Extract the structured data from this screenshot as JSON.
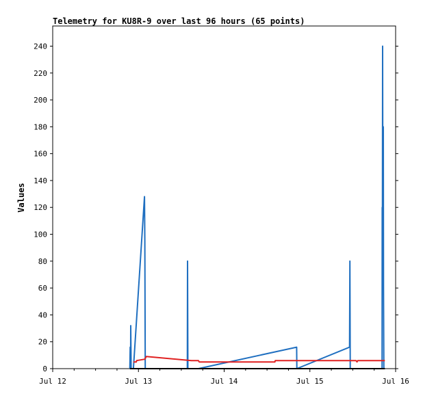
{
  "chart_data": {
    "type": "line",
    "title": "Telemetry for KU8R-9 over last 96 hours (65 points)",
    "xlabel": "",
    "ylabel": "Values",
    "x_tick_labels": [
      "Jul 12",
      "Jul 13",
      "Jul 14",
      "Jul 15",
      "Jul 16"
    ],
    "xlim": [
      0,
      96
    ],
    "ylim": [
      0,
      255
    ],
    "y_ticks": [
      0,
      20,
      40,
      60,
      80,
      100,
      120,
      140,
      160,
      180,
      200,
      220,
      240
    ],
    "grid": false,
    "series": [
      {
        "color": "#1f6fc0",
        "points": [
          [
            21.6,
            0
          ],
          [
            21.7,
            16
          ],
          [
            21.8,
            0
          ],
          [
            21.85,
            32
          ],
          [
            21.95,
            0
          ],
          [
            22.1,
            0
          ],
          [
            22.6,
            0
          ],
          [
            25.7,
            128
          ],
          [
            25.8,
            95
          ],
          [
            25.9,
            0
          ],
          [
            26.1,
            0
          ],
          [
            37.7,
            0
          ],
          [
            37.75,
            80
          ],
          [
            37.85,
            0
          ],
          [
            40.8,
            0
          ],
          [
            68.3,
            16
          ],
          [
            68.35,
            0
          ],
          [
            83.1,
            16
          ],
          [
            83.2,
            80
          ],
          [
            83.3,
            0
          ],
          [
            92.2,
            0
          ],
          [
            92.25,
            120
          ],
          [
            92.3,
            100
          ],
          [
            92.35,
            240
          ],
          [
            92.45,
            60
          ],
          [
            92.55,
            180
          ],
          [
            92.6,
            60
          ],
          [
            92.7,
            0
          ],
          [
            93.0,
            0
          ]
        ]
      },
      {
        "color": "#e02020",
        "points": [
          [
            22.6,
            5
          ],
          [
            23.4,
            5
          ],
          [
            23.5,
            6
          ],
          [
            25.8,
            7
          ],
          [
            26.2,
            9
          ],
          [
            38.8,
            6
          ],
          [
            40.8,
            6
          ],
          [
            41.0,
            5
          ],
          [
            62.2,
            5
          ],
          [
            62.3,
            6
          ],
          [
            84.9,
            6
          ],
          [
            85.2,
            5
          ],
          [
            85.4,
            6
          ],
          [
            93.0,
            6
          ]
        ]
      },
      {
        "color": "#000000",
        "points": [
          [
            21.6,
            0
          ],
          [
            93.0,
            0
          ]
        ]
      }
    ]
  }
}
